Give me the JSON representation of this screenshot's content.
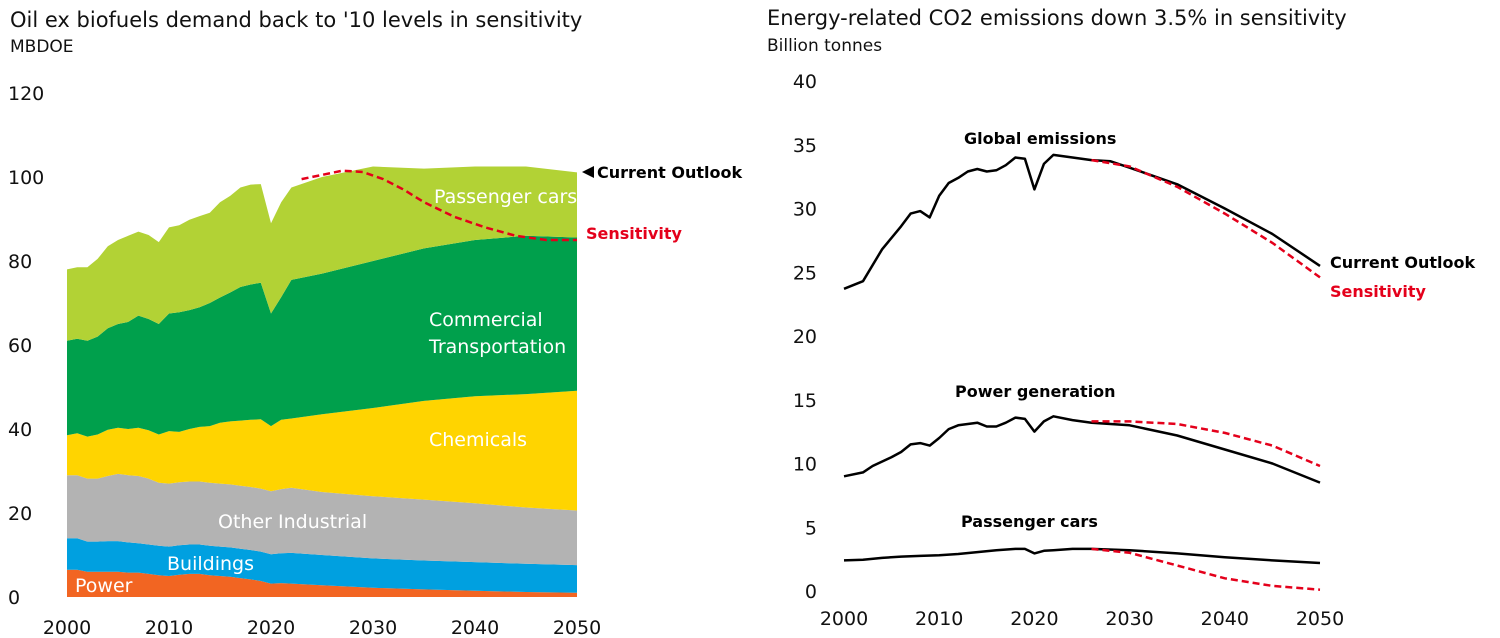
{
  "chart_data": [
    {
      "type": "area",
      "title": "Oil ex biofuels demand back to '10 levels in sensitivity",
      "ylabel": "MBDOE",
      "ylim": [
        0,
        120
      ],
      "yticks": [
        0,
        20,
        40,
        60,
        80,
        100,
        120
      ],
      "xticks": [
        2000,
        2010,
        2020,
        2030,
        2040,
        2050
      ],
      "x": [
        2000,
        2001,
        2002,
        2003,
        2004,
        2005,
        2006,
        2007,
        2008,
        2009,
        2010,
        2011,
        2012,
        2013,
        2014,
        2015,
        2016,
        2017,
        2018,
        2019,
        2020,
        2021,
        2022,
        2025,
        2030,
        2035,
        2040,
        2045,
        2050
      ],
      "series": [
        {
          "name": "Power",
          "label": "Power",
          "color": "#f26522",
          "values": [
            6.5,
            6.5,
            6.0,
            6.0,
            6.0,
            6.0,
            5.8,
            5.8,
            5.5,
            5.2,
            5.0,
            5.3,
            5.5,
            5.5,
            5.2,
            5.0,
            4.8,
            4.5,
            4.2,
            3.8,
            3.2,
            3.3,
            3.2,
            2.8,
            2.2,
            1.8,
            1.5,
            1.2,
            1.0
          ]
        },
        {
          "name": "Buildings",
          "label": "Buildings",
          "color": "#00a0e0",
          "values": [
            7.5,
            7.5,
            7.2,
            7.2,
            7.3,
            7.3,
            7.2,
            7.0,
            7.0,
            7.0,
            7.0,
            7.0,
            7.0,
            7.0,
            7.0,
            7.0,
            7.0,
            7.0,
            7.0,
            7.0,
            7.0,
            7.1,
            7.3,
            7.2,
            7.0,
            6.9,
            6.8,
            6.7,
            6.6
          ]
        },
        {
          "name": "Other Industrial",
          "label": "Other Industrial",
          "color": "#b3b3b3",
          "values": [
            15.0,
            15.0,
            15.0,
            15.0,
            15.5,
            16.0,
            16.0,
            16.0,
            15.7,
            15.0,
            15.0,
            15.0,
            15.0,
            15.0,
            15.0,
            15.0,
            15.0,
            15.0,
            15.0,
            15.0,
            15.0,
            15.3,
            15.5,
            15.0,
            14.8,
            14.5,
            14.0,
            13.4,
            13.0
          ]
        },
        {
          "name": "Chemicals",
          "label": "Chemicals",
          "color": "#ffd400",
          "values": [
            9.5,
            10.0,
            10.0,
            10.5,
            11.0,
            11.0,
            11.0,
            11.5,
            11.5,
            11.5,
            12.5,
            12.0,
            12.5,
            13.0,
            13.5,
            14.5,
            15.0,
            15.5,
            16.0,
            16.5,
            15.5,
            16.5,
            16.5,
            18.5,
            21.0,
            23.5,
            25.5,
            27.0,
            28.5
          ]
        },
        {
          "name": "Commercial Transportation",
          "label": [
            "Commercial",
            "Transportation"
          ],
          "color": "#00a04c",
          "values": [
            22.5,
            22.5,
            22.8,
            23.3,
            24.2,
            24.7,
            25.5,
            26.7,
            26.5,
            26.3,
            28.0,
            28.5,
            28.3,
            28.5,
            29.3,
            29.8,
            30.7,
            31.8,
            32.2,
            32.5,
            26.8,
            29.2,
            33.0,
            33.5,
            35.0,
            36.3,
            37.2,
            37.7,
            36.5
          ]
        },
        {
          "name": "Passenger cars",
          "label": "Passenger cars",
          "color": "#b2d235",
          "values": [
            17.0,
            17.0,
            17.5,
            18.5,
            19.5,
            20.0,
            20.5,
            20.0,
            20.0,
            19.5,
            20.5,
            20.7,
            21.5,
            21.7,
            21.5,
            22.7,
            23.0,
            23.7,
            23.8,
            23.5,
            21.5,
            22.6,
            22.0,
            23.0,
            22.5,
            19.0,
            17.5,
            16.5,
            15.5
          ]
        }
      ],
      "sensitivity": {
        "x": [
          2023,
          2025,
          2027,
          2029,
          2031,
          2033,
          2035,
          2038,
          2041,
          2044,
          2047,
          2050
        ],
        "values": [
          99.5,
          100.5,
          101.5,
          101.2,
          99.5,
          97.0,
          94.0,
          90.5,
          88.0,
          86.0,
          85.0,
          85.0
        ]
      },
      "annotations": {
        "current": "Current Outlook",
        "sensitivity": "Sensitivity"
      }
    },
    {
      "type": "line",
      "title": "Energy-related CO2 emissions down 3.5% in sensitivity",
      "ylabel": "Billion tonnes",
      "ylim": [
        0,
        40
      ],
      "yticks": [
        0,
        5,
        10,
        15,
        20,
        25,
        30,
        35,
        40
      ],
      "xticks": [
        2000,
        2010,
        2020,
        2030,
        2040,
        2050
      ],
      "series": [
        {
          "name": "Global emissions",
          "x": [
            2000,
            2002,
            2004,
            2006,
            2007,
            2008,
            2009,
            2010,
            2011,
            2012,
            2013,
            2014,
            2015,
            2016,
            2017,
            2018,
            2019,
            2020,
            2021,
            2022,
            2024,
            2026,
            2028,
            2030,
            2035,
            2040,
            2045,
            2050
          ],
          "current": [
            23.7,
            24.3,
            26.8,
            28.6,
            29.6,
            29.8,
            29.3,
            31.0,
            32.0,
            32.4,
            32.9,
            33.1,
            32.9,
            33.0,
            33.4,
            34.0,
            33.9,
            31.5,
            33.5,
            34.2,
            34.0,
            33.8,
            33.7,
            33.2,
            31.9,
            30.0,
            28.0,
            25.5
          ],
          "sens_x": [
            2026,
            2030,
            2035,
            2040,
            2045,
            2050
          ],
          "sensitivity": [
            33.8,
            33.3,
            31.7,
            29.6,
            27.3,
            24.6
          ]
        },
        {
          "name": "Power generation",
          "x": [
            2000,
            2002,
            2003,
            2005,
            2006,
            2007,
            2008,
            2009,
            2010,
            2011,
            2012,
            2013,
            2014,
            2015,
            2016,
            2017,
            2018,
            2019,
            2020,
            2021,
            2022,
            2024,
            2026,
            2030,
            2035,
            2040,
            2045,
            2050
          ],
          "current": [
            9.0,
            9.3,
            9.8,
            10.5,
            10.9,
            11.5,
            11.6,
            11.4,
            12.0,
            12.7,
            13.0,
            13.1,
            13.2,
            12.9,
            12.9,
            13.2,
            13.6,
            13.5,
            12.5,
            13.3,
            13.7,
            13.4,
            13.2,
            13.0,
            12.2,
            11.1,
            10.0,
            8.5
          ],
          "sens_x": [
            2026,
            2030,
            2035,
            2040,
            2045,
            2050
          ],
          "sensitivity": [
            13.3,
            13.3,
            13.1,
            12.4,
            11.4,
            9.8
          ]
        },
        {
          "name": "Passenger cars",
          "x": [
            2000,
            2002,
            2004,
            2006,
            2008,
            2010,
            2012,
            2014,
            2016,
            2018,
            2019,
            2020,
            2021,
            2022,
            2024,
            2026,
            2030,
            2035,
            2040,
            2045,
            2050
          ],
          "current": [
            2.4,
            2.45,
            2.6,
            2.7,
            2.75,
            2.8,
            2.9,
            3.05,
            3.2,
            3.3,
            3.3,
            2.95,
            3.15,
            3.2,
            3.3,
            3.3,
            3.2,
            2.95,
            2.65,
            2.4,
            2.2
          ],
          "sens_x": [
            2026,
            2030,
            2035,
            2040,
            2045,
            2050
          ],
          "sensitivity": [
            3.3,
            3.0,
            2.0,
            1.0,
            0.4,
            0.1
          ]
        }
      ],
      "annotations": {
        "current": "Current Outlook",
        "sensitivity": "Sensitivity"
      }
    }
  ]
}
